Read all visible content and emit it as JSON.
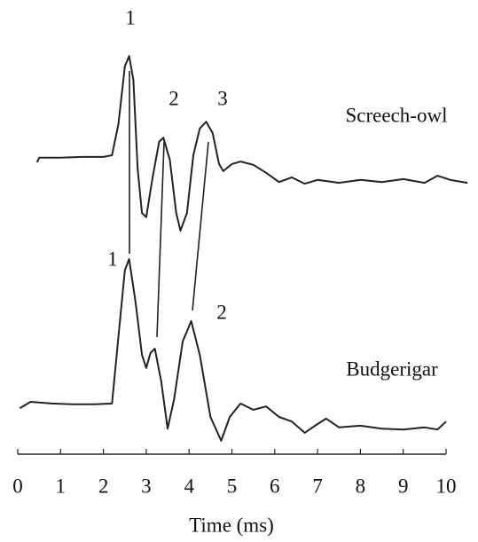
{
  "chart_data": {
    "type": "line",
    "x_label": "Time (ms)",
    "xlim": [
      0,
      10
    ],
    "xticks": [
      0,
      1,
      2,
      3,
      4,
      5,
      6,
      7,
      8,
      9,
      10
    ],
    "ylim": [
      0,
      100
    ],
    "series": [
      {
        "name": "Screech-owl",
        "color": "#222222",
        "x": [
          0.45,
          0.5,
          1.0,
          1.5,
          2.0,
          2.2,
          2.35,
          2.5,
          2.6,
          2.7,
          2.8,
          2.9,
          3.0,
          3.15,
          3.3,
          3.4,
          3.55,
          3.7,
          3.8,
          3.95,
          4.1,
          4.25,
          4.4,
          4.55,
          4.7,
          4.8,
          5.0,
          5.2,
          5.5,
          5.8,
          6.1,
          6.4,
          6.7,
          7.0,
          7.5,
          8.0,
          8.5,
          9.0,
          9.5,
          9.8,
          10.1,
          10.5
        ],
        "values": [
          69.7,
          70.8,
          70.8,
          71.0,
          71.0,
          71.4,
          78.8,
          92.6,
          95.1,
          89.4,
          68.2,
          57.6,
          56.6,
          66.1,
          74.6,
          75.6,
          70.3,
          57.6,
          53.4,
          57.6,
          71.4,
          77.8,
          79.4,
          76.7,
          69.3,
          67.6,
          69.3,
          69.9,
          69.1,
          67.2,
          65.0,
          66.1,
          64.6,
          65.5,
          64.8,
          65.5,
          65.0,
          65.7,
          64.8,
          66.5,
          65.5,
          64.8
        ]
      },
      {
        "name": "Budgerigar",
        "color": "#222222",
        "x": [
          0.05,
          0.3,
          0.8,
          1.3,
          1.8,
          2.2,
          2.35,
          2.5,
          2.6,
          2.75,
          2.9,
          3.0,
          3.1,
          3.2,
          3.35,
          3.5,
          3.65,
          3.85,
          4.05,
          4.25,
          4.5,
          4.75,
          4.95,
          5.2,
          5.5,
          5.8,
          6.1,
          6.4,
          6.7,
          7.0,
          7.2,
          7.5,
          8.0,
          8.5,
          9.0,
          9.5,
          9.8,
          10.0
        ],
        "values": [
          11.0,
          12.5,
          12.1,
          11.9,
          11.9,
          12.1,
          28.0,
          43.9,
          46.6,
          36.4,
          23.7,
          20.6,
          24.2,
          25.2,
          17.4,
          6.1,
          13.1,
          26.9,
          31.8,
          23.7,
          8.9,
          3.2,
          8.9,
          12.1,
          10.6,
          11.4,
          8.9,
          7.8,
          5.1,
          7.2,
          8.5,
          6.4,
          6.8,
          6.1,
          5.9,
          6.4,
          5.9,
          7.8
        ]
      }
    ],
    "annotations": [
      "1",
      "2",
      "3",
      "1",
      "2"
    ]
  }
}
